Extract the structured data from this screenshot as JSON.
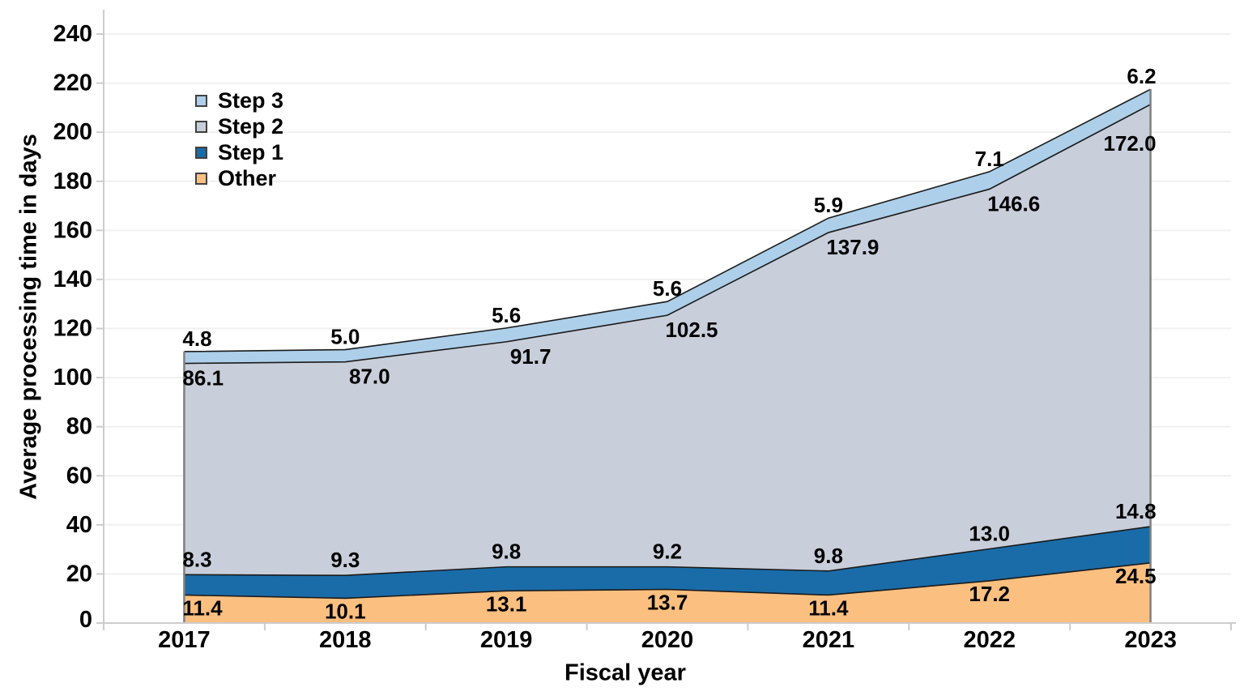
{
  "chart_data": {
    "type": "area",
    "stacked": true,
    "xlabel": "Fiscal year",
    "ylabel": "Average processing time in days",
    "x_categories": [
      "2017",
      "2018",
      "2019",
      "2020",
      "2021",
      "2022",
      "2023"
    ],
    "ylim": [
      0,
      240
    ],
    "y_tick_step": 20,
    "y_ticks": [
      0,
      20,
      40,
      60,
      80,
      100,
      120,
      140,
      160,
      180,
      200,
      220,
      240
    ],
    "grid": true,
    "legend_position": "inside-top-left",
    "label_format": "1 decimal place",
    "series": [
      {
        "name": "Other",
        "color": "#FBBF7F",
        "values": [
          11.4,
          10.1,
          13.1,
          13.7,
          11.4,
          17.2,
          24.5
        ]
      },
      {
        "name": "Step 1",
        "color": "#1A6CA8",
        "values": [
          8.3,
          9.3,
          9.8,
          9.2,
          9.8,
          13.0,
          14.8
        ]
      },
      {
        "name": "Step 2",
        "color": "#C8CEDA",
        "values": [
          86.1,
          87.0,
          91.7,
          102.5,
          137.9,
          146.6,
          172.0
        ]
      },
      {
        "name": "Step 3",
        "color": "#ADCFE9",
        "values": [
          4.8,
          5.0,
          5.6,
          5.6,
          5.9,
          7.1,
          6.2
        ]
      }
    ],
    "legend": [
      {
        "label": "Step 3",
        "color": "#ADCFE9"
      },
      {
        "label": "Step 2",
        "color": "#C8CEDA"
      },
      {
        "label": "Step 1",
        "color": "#1A6CA8"
      },
      {
        "label": "Other",
        "color": "#FBBF7F"
      }
    ]
  },
  "colors": {
    "background": "#FFFFFF",
    "gridline": "#F0F0F0",
    "axis_line": "#CCCCCC",
    "band_outline": "#1A1A1A",
    "area_side_edge": "#808080",
    "text": "#000000"
  }
}
